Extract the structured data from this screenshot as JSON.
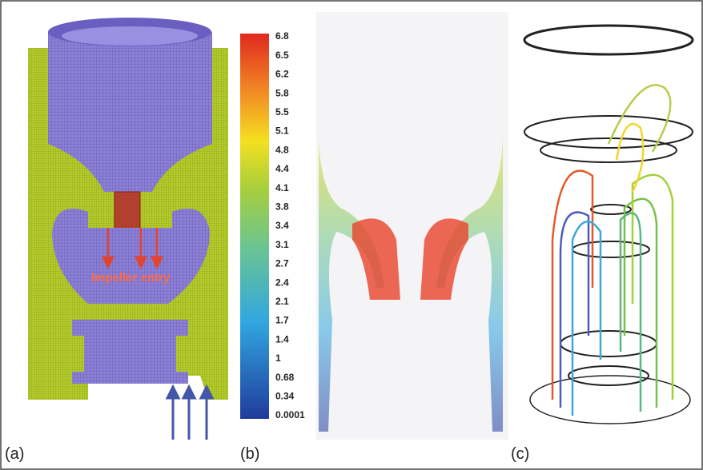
{
  "panels": {
    "a": {
      "label": "(a)",
      "annotation": "Impeller entry"
    },
    "b": {
      "label": "(b)"
    },
    "c": {
      "label": "(c)"
    }
  },
  "colorbar": {
    "labels": [
      "6.8",
      "6.5",
      "6.2",
      "5.8",
      "5.5",
      "5.1",
      "4.8",
      "4.4",
      "4.1",
      "3.8",
      "3.4",
      "3.1",
      "2.7",
      "2.4",
      "2.1",
      "1.7",
      "1.4",
      "1",
      "0.68",
      "0.34",
      "0.0001"
    ]
  }
}
